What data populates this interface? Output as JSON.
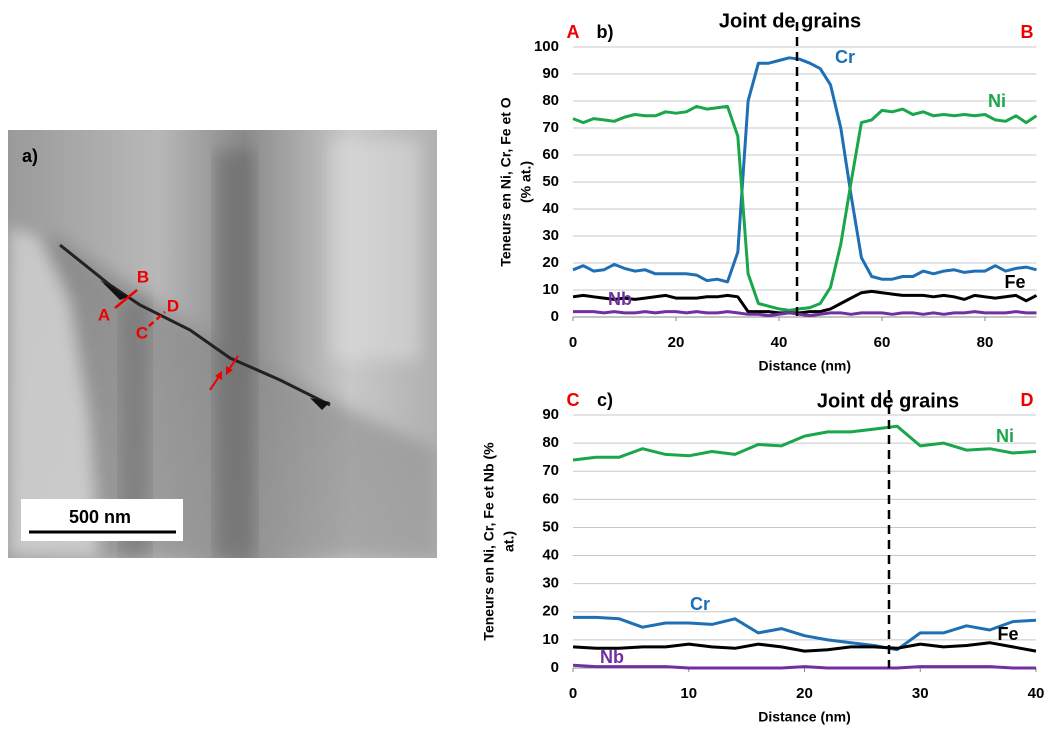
{
  "image": {
    "panel_label": "a)",
    "points": [
      "A",
      "B",
      "C",
      "D"
    ],
    "scale_bar": "500 nm"
  },
  "chart_data": [
    {
      "type": "line",
      "panel_label": "b)",
      "start_label": "A",
      "end_label": "B",
      "title": "Joint de grains",
      "boundary": 43.5,
      "xlabel": "Distance (nm)",
      "ylabel": [
        "Teneurs en Ni, Cr, Fe et O",
        "(% at.)"
      ],
      "x": [
        0,
        2,
        4,
        6,
        8,
        10,
        12,
        14,
        16,
        18,
        20,
        22,
        24,
        26,
        28,
        30,
        32,
        34,
        36,
        38,
        40,
        42,
        44,
        46,
        48,
        50,
        52,
        54,
        56,
        58,
        60,
        62,
        64,
        66,
        68,
        70,
        72,
        74,
        76,
        78,
        80,
        82,
        84,
        86,
        88,
        90
      ],
      "xlim": [
        0,
        90
      ],
      "xticks": [
        0,
        20,
        40,
        60,
        80
      ],
      "ylim": [
        0,
        100
      ],
      "yticks": [
        0,
        10,
        20,
        30,
        40,
        50,
        60,
        70,
        80,
        90,
        100
      ],
      "grid": true,
      "series": [
        {
          "name": "Cr",
          "color": "#1f6fb5",
          "values": [
            17.5,
            19,
            17,
            17.5,
            19.5,
            18,
            17,
            17.5,
            16,
            16,
            16,
            16,
            15.5,
            13.5,
            14,
            13,
            24,
            80,
            94,
            94,
            95,
            96,
            95.5,
            94,
            92,
            86,
            70,
            45,
            22,
            15,
            14,
            14,
            15,
            15,
            17,
            16,
            17,
            17.5,
            16.5,
            17,
            17,
            19,
            17,
            18,
            18.5,
            17.5
          ]
        },
        {
          "name": "Ni",
          "color": "#1aa64a",
          "values": [
            73.5,
            72,
            73.5,
            73,
            72.5,
            74,
            75,
            74.5,
            74.5,
            76,
            75.5,
            76,
            78,
            77,
            77.5,
            78,
            67,
            16,
            5,
            4,
            3,
            2.5,
            3,
            3.5,
            5,
            11,
            27,
            50,
            72,
            73,
            76.5,
            76,
            77,
            75,
            76,
            74.5,
            75,
            74.5,
            75,
            74.5,
            75,
            73,
            72.5,
            74.5,
            72,
            74.5
          ]
        },
        {
          "name": "Fe",
          "color": "#000000",
          "values": [
            7.5,
            8,
            7.5,
            7,
            6.5,
            7,
            6.5,
            7,
            7.5,
            8,
            7,
            7,
            7,
            7.5,
            7.5,
            8,
            7.5,
            2,
            2,
            2,
            1.5,
            1.5,
            1.5,
            2,
            2,
            3,
            5,
            7,
            9,
            9.5,
            9,
            8.5,
            8,
            8,
            8,
            7.5,
            8,
            7.5,
            6.5,
            8,
            7.5,
            7,
            7.5,
            8,
            6,
            8
          ]
        },
        {
          "name": "Nb",
          "color": "#7030a0",
          "values": [
            2,
            2,
            2,
            1.5,
            2,
            1.5,
            1.5,
            2,
            1.5,
            2,
            2,
            1.5,
            2,
            1.5,
            1.5,
            2,
            1.5,
            1,
            1,
            0.5,
            1,
            1.5,
            1,
            0.5,
            1,
            1.5,
            1.5,
            1,
            1.5,
            1.5,
            1.5,
            1,
            1.5,
            1.5,
            1,
            1.5,
            1,
            1.5,
            1.5,
            2,
            1.5,
            1.5,
            1.5,
            2,
            1.5,
            1.5
          ]
        }
      ]
    },
    {
      "type": "line",
      "panel_label": "c)",
      "start_label": "C",
      "end_label": "D",
      "title": "Joint de grains",
      "boundary": 27.3,
      "xlabel": "Distance (nm)",
      "ylabel": [
        "Teneurs en Ni, Cr, Fe et Nb (%",
        "at.)"
      ],
      "x": [
        0,
        2,
        4,
        6,
        8,
        10,
        12,
        14,
        16,
        18,
        20,
        22,
        24,
        26,
        28,
        30,
        32,
        34,
        36,
        38,
        40
      ],
      "xlim": [
        0,
        40
      ],
      "xticks": [
        0,
        10,
        20,
        30,
        40
      ],
      "ylim": [
        0,
        90
      ],
      "yticks": [
        0,
        10,
        20,
        30,
        40,
        50,
        60,
        70,
        80,
        90
      ],
      "grid": true,
      "series": [
        {
          "name": "Ni",
          "color": "#1aa64a",
          "values": [
            74,
            75,
            75,
            78,
            76,
            75.5,
            77,
            76,
            79.5,
            79,
            82.5,
            84,
            84,
            85,
            86,
            79,
            80,
            77.5,
            78,
            76.5,
            77
          ]
        },
        {
          "name": "Cr",
          "color": "#1f6fb5",
          "values": [
            18,
            18,
            17.5,
            14.5,
            16,
            16,
            15.5,
            17.5,
            12.5,
            14,
            11.5,
            10,
            9,
            8,
            6.5,
            12.5,
            12.5,
            15,
            13.5,
            16.5,
            17
          ]
        },
        {
          "name": "Fe",
          "color": "#000000",
          "values": [
            7.5,
            7,
            7,
            7.5,
            7.5,
            8.5,
            7.5,
            7,
            8.5,
            7.5,
            6,
            6.5,
            7.5,
            7.5,
            7,
            8.5,
            7.5,
            8,
            9,
            7.5,
            6
          ]
        },
        {
          "name": "Nb",
          "color": "#7030a0",
          "values": [
            1,
            0.5,
            0.5,
            0.5,
            0.5,
            0,
            0,
            0,
            0,
            0,
            0.5,
            0,
            0,
            0,
            0,
            0.5,
            0.5,
            0.5,
            0.5,
            0,
            0
          ]
        }
      ]
    }
  ]
}
